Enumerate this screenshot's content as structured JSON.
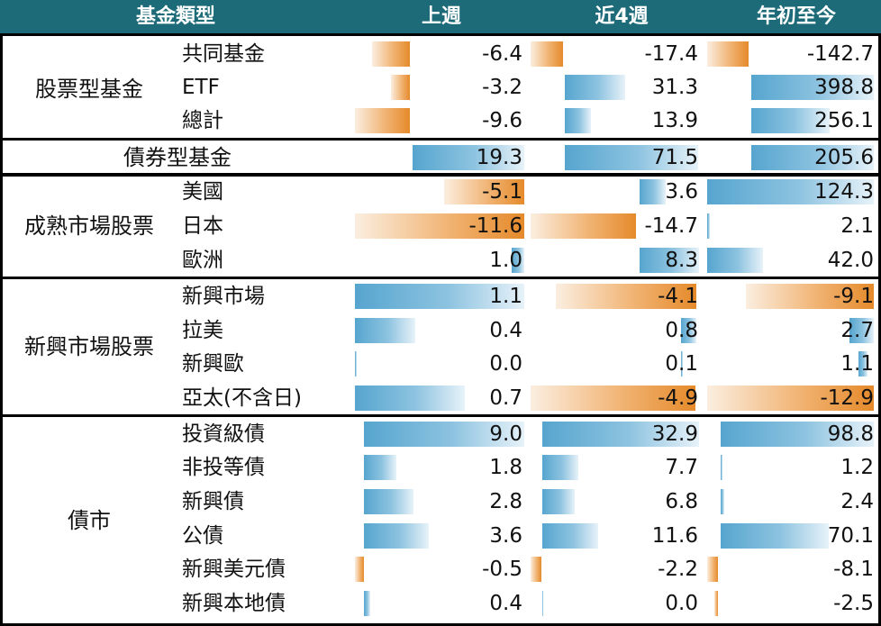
{
  "header": {
    "col_fund": "基金類型",
    "col_week": "上週",
    "col_4wk": "近4週",
    "col_ytd": "年初至今"
  },
  "groups": {
    "equity": "股票型基金",
    "bond": "債券型基金",
    "developed": "成熟市場股票",
    "emerging": "新興市場股票",
    "debt": "債市"
  },
  "rows": [
    {
      "label": "共同基金",
      "week": "-6.4",
      "wk4": "-17.4",
      "ytd": "-142.7"
    },
    {
      "label": "ETF",
      "week": "-3.2",
      "wk4": "31.3",
      "ytd": "398.8"
    },
    {
      "label": "總計",
      "week": "-9.6",
      "wk4": "13.9",
      "ytd": "256.1"
    },
    {
      "label": "",
      "week": "19.3",
      "wk4": "71.5",
      "ytd": "205.6"
    },
    {
      "label": "美國",
      "week": "-5.1",
      "wk4": "3.6",
      "ytd": "124.3"
    },
    {
      "label": "日本",
      "week": "-11.6",
      "wk4": "-14.7",
      "ytd": "2.1"
    },
    {
      "label": "歐洲",
      "week": "1.0",
      "wk4": "8.3",
      "ytd": "42.0"
    },
    {
      "label": "新興市場",
      "week": "1.1",
      "wk4": "-4.1",
      "ytd": "-9.1"
    },
    {
      "label": "拉美",
      "week": "0.4",
      "wk4": "0.8",
      "ytd": "2.7"
    },
    {
      "label": "新興歐",
      "week": "0.0",
      "wk4": "0.1",
      "ytd": "1.1"
    },
    {
      "label": "亞太(不含日)",
      "week": "0.7",
      "wk4": "-4.9",
      "ytd": "-12.9"
    },
    {
      "label": "投資級債",
      "week": "9.0",
      "wk4": "32.9",
      "ytd": "98.8"
    },
    {
      "label": "非投等債",
      "week": "1.8",
      "wk4": "7.7",
      "ytd": "1.2"
    },
    {
      "label": "新興債",
      "week": "2.8",
      "wk4": "6.8",
      "ytd": "2.4"
    },
    {
      "label": "公債",
      "week": "3.6",
      "wk4": "11.6",
      "ytd": "70.1"
    },
    {
      "label": "新興美元債",
      "week": "-0.5",
      "wk4": "-2.2",
      "ytd": "-8.1"
    },
    {
      "label": "新興本地債",
      "week": "0.4",
      "wk4": "0.0",
      "ytd": "-2.5"
    }
  ],
  "colors": {
    "header_bg": "#1d6a78",
    "positive_bar": "#56a5cf",
    "negative_bar": "#e58a2b"
  }
}
